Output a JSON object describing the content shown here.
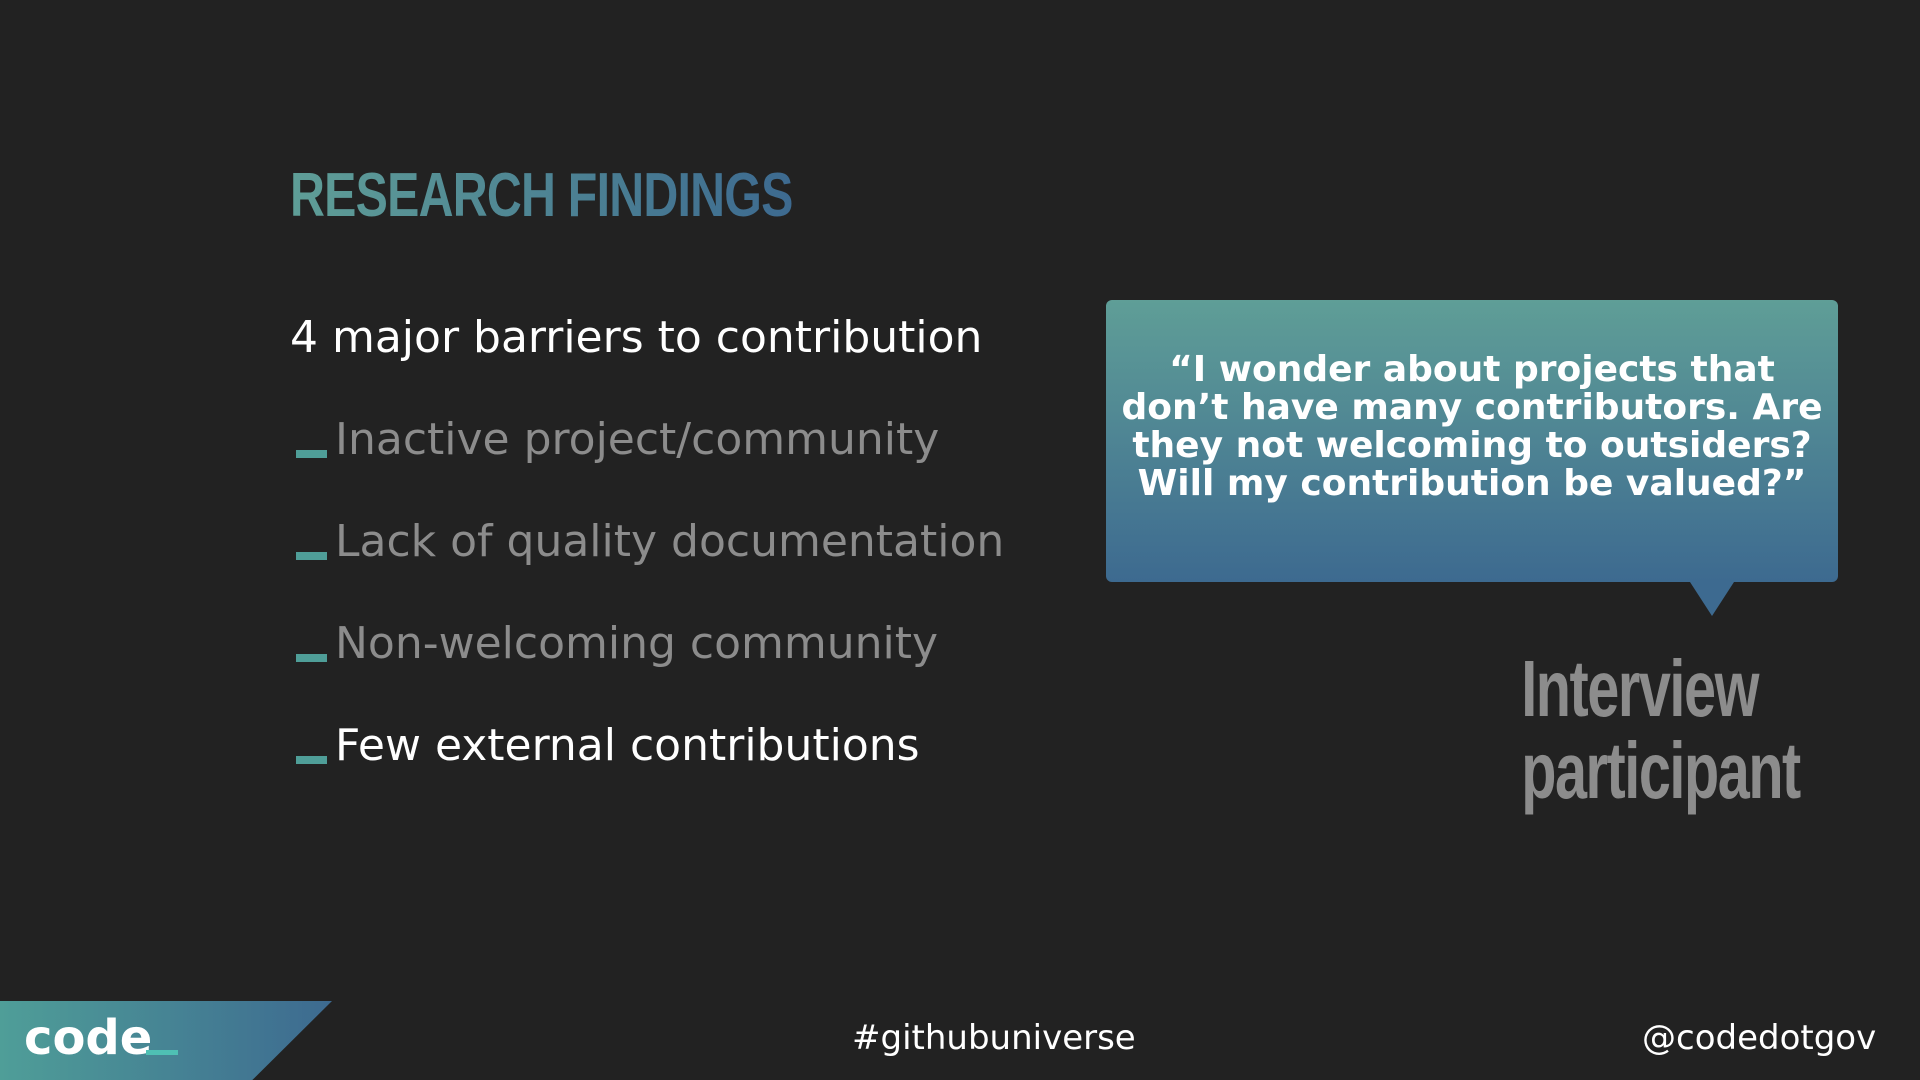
{
  "slide": {
    "title": "RESEARCH FINDINGS",
    "subtitle": "4 major barriers to contribution",
    "bullets": [
      {
        "text": "Inactive project/community",
        "highlighted": false
      },
      {
        "text": "Lack of quality documentation",
        "highlighted": false
      },
      {
        "text": "Non-welcoming community",
        "highlighted": false
      },
      {
        "text": "Few external contributions",
        "highlighted": true
      }
    ],
    "quote": "“I wonder about projects that don’t have many contributors. Are they not welcoming to outsiders? Will my contribution be valued?”",
    "attribution_line1": "Interview",
    "attribution_line2": "participant"
  },
  "footer": {
    "logo": "code",
    "hashtag": "#githubuniverse",
    "handle": "@codedotgov"
  },
  "colors": {
    "background": "#222222",
    "accent_teal": "#5f9e97",
    "accent_blue": "#3d6a90",
    "muted_text": "#8c8c8c",
    "text": "#ffffff"
  }
}
